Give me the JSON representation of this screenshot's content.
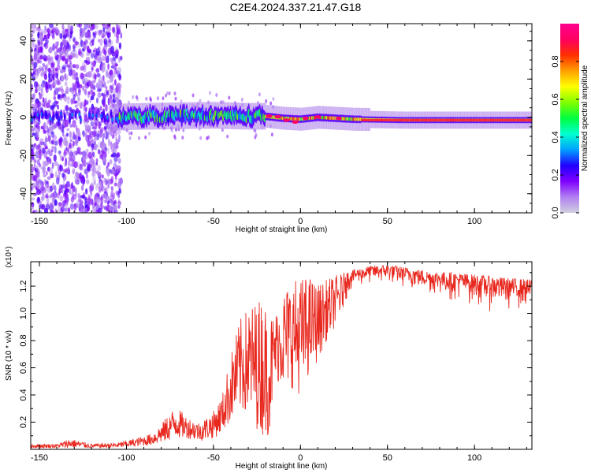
{
  "title": "C2E4.2024.337.21.47.G18",
  "chart_data": [
    {
      "type": "heatmap",
      "xlabel": "Height of straight line (km)",
      "ylabel": "Frequency (Hz)",
      "xlim": [
        -155,
        133
      ],
      "ylim": [
        -50,
        49
      ],
      "xticks": [
        -150,
        -100,
        -50,
        0,
        50,
        100
      ],
      "yticks": [
        -40,
        -20,
        0,
        20,
        40
      ],
      "grid": false,
      "colorbar": {
        "label": "Normalized spectral amplitude",
        "range": [
          0,
          1
        ],
        "ticks": [
          0.0,
          0.2,
          0.4,
          0.6,
          0.8
        ],
        "colormap": [
          "#d0d0e0",
          "#b080f0",
          "#8000ff",
          "#2000ff",
          "#00a0ff",
          "#00ffd0",
          "#00ff40",
          "#80ff00",
          "#ffff00",
          "#ffa000",
          "#ff3000",
          "#ff0060",
          "#ff0090"
        ]
      },
      "description_values": {
        "ridge_center_hz": [
          [
            -150,
            0
          ],
          [
            -110,
            0
          ],
          [
            -90,
            0.5
          ],
          [
            -70,
            0.8
          ],
          [
            -50,
            1.0
          ],
          [
            -30,
            0.5
          ],
          [
            -20,
            0.5
          ],
          [
            -10,
            -0.5
          ],
          [
            0,
            -1
          ],
          [
            10,
            0
          ],
          [
            30,
            -1
          ],
          [
            60,
            -1.5
          ],
          [
            100,
            -1.5
          ],
          [
            133,
            -1.5
          ]
        ]
      }
    },
    {
      "type": "line",
      "xlabel": "Height of straight line (km)",
      "ylabel": "SNR (10 * v/v)",
      "y_multiplier": "(x10⁴)",
      "xlim": [
        -155,
        133
      ],
      "ylim": [
        0,
        1.38
      ],
      "xticks": [
        -150,
        -100,
        -50,
        0,
        50,
        100
      ],
      "yticks": [
        0.2,
        0.4,
        0.6,
        0.8,
        1.0,
        1.2
      ],
      "grid": false,
      "color": "#e8281e",
      "series": [
        {
          "envelope": [
            [
              -155,
              0.01,
              0.04
            ],
            [
              -140,
              0.01,
              0.04
            ],
            [
              -132,
              0.01,
              0.08
            ],
            [
              -120,
              0.01,
              0.04
            ],
            [
              -105,
              0.01,
              0.05
            ],
            [
              -95,
              0.02,
              0.08
            ],
            [
              -85,
              0.03,
              0.12
            ],
            [
              -78,
              0.05,
              0.22
            ],
            [
              -72,
              0.08,
              0.32
            ],
            [
              -65,
              0.08,
              0.24
            ],
            [
              -58,
              0.06,
              0.2
            ],
            [
              -50,
              0.08,
              0.28
            ],
            [
              -45,
              0.12,
              0.4
            ],
            [
              -40,
              0.2,
              0.7
            ],
            [
              -35,
              0.25,
              0.95
            ],
            [
              -30,
              0.25,
              1.05
            ],
            [
              -25,
              0.15,
              1.1
            ],
            [
              -22,
              0.1,
              1.14
            ],
            [
              -18,
              0.1,
              1.0
            ],
            [
              -14,
              0.5,
              1.02
            ],
            [
              -10,
              0.45,
              1.18
            ],
            [
              -5,
              0.45,
              1.25
            ],
            [
              0,
              0.4,
              1.27
            ],
            [
              5,
              0.55,
              1.28
            ],
            [
              10,
              0.65,
              1.22
            ],
            [
              15,
              0.8,
              1.25
            ],
            [
              20,
              0.9,
              1.28
            ],
            [
              25,
              1.05,
              1.3
            ],
            [
              30,
              1.15,
              1.32
            ],
            [
              40,
              1.18,
              1.35
            ],
            [
              50,
              1.18,
              1.36
            ],
            [
              60,
              1.15,
              1.34
            ],
            [
              75,
              1.1,
              1.31
            ],
            [
              90,
              1.05,
              1.3
            ],
            [
              105,
              1.0,
              1.28
            ],
            [
              120,
              0.98,
              1.26
            ],
            [
              133,
              0.98,
              1.25
            ]
          ]
        }
      ]
    }
  ]
}
